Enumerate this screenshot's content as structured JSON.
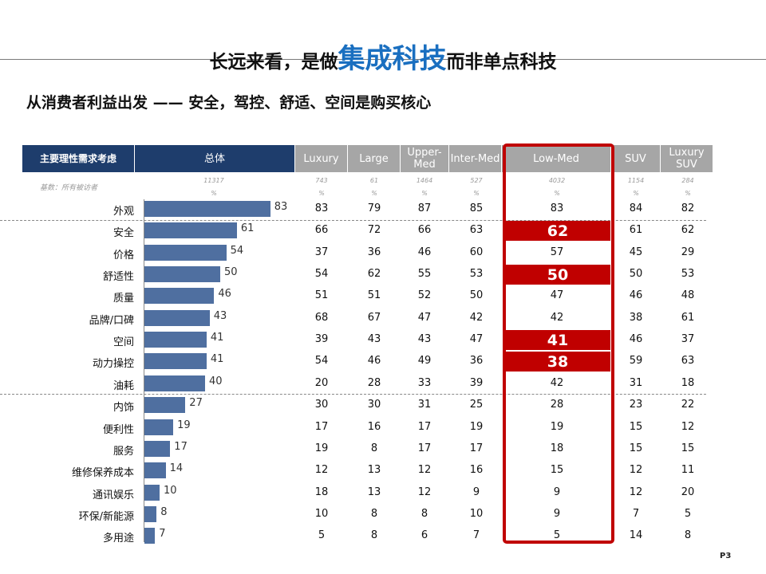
{
  "title_pre": "长远来看，是做",
  "title_hl": "集成科技",
  "title_post": "而非单点科技",
  "subtitle": "从消费者利益出发 —— 安全，驾控、舒适、空间是购买核心",
  "header": {
    "first": "主要理性需求考虑",
    "total": "总体",
    "cols": [
      "Luxury",
      "Large",
      "Upper-Med",
      "Inter-Med",
      "Low-Med",
      "SUV",
      "Luxury SUV"
    ]
  },
  "base_label": "基数：所有被访者",
  "base": {
    "total": "11317",
    "cols": [
      "743",
      "61",
      "1464",
      "527",
      "4032",
      "1154",
      "284"
    ],
    "unit": "%"
  },
  "colors": {
    "header_dark": "#1e3d6c",
    "header_grey": "#a6a6a6",
    "bar": "#4f6fa0",
    "highlight": "#c00000",
    "title_accent": "#1a6fc0"
  },
  "page_number": "P3",
  "chart_data": {
    "type": "bar",
    "orientation": "horizontal",
    "categories": [
      "外观",
      "安全",
      "价格",
      "舒适性",
      "质量",
      "品牌/口碑",
      "空间",
      "动力操控",
      "油耗",
      "内饰",
      "便利性",
      "服务",
      "维修保养成本",
      "通讯娱乐",
      "环保/新能源",
      "多用途"
    ],
    "series": [
      {
        "name": "总体",
        "values": [
          83,
          61,
          54,
          50,
          46,
          43,
          41,
          41,
          40,
          27,
          19,
          17,
          14,
          10,
          8,
          7
        ]
      }
    ],
    "table": {
      "columns": [
        "Luxury",
        "Large",
        "Upper-Med",
        "Inter-Med",
        "Low-Med",
        "SUV",
        "Luxury SUV"
      ],
      "rows": [
        [
          83,
          79,
          87,
          85,
          83,
          84,
          82
        ],
        [
          66,
          72,
          66,
          63,
          62,
          61,
          62
        ],
        [
          37,
          36,
          46,
          60,
          57,
          45,
          29
        ],
        [
          54,
          62,
          55,
          53,
          50,
          50,
          53
        ],
        [
          51,
          51,
          52,
          50,
          47,
          46,
          48
        ],
        [
          68,
          67,
          47,
          42,
          42,
          38,
          61
        ],
        [
          39,
          43,
          43,
          47,
          41,
          46,
          37
        ],
        [
          54,
          46,
          49,
          36,
          38,
          59,
          63
        ],
        [
          20,
          28,
          33,
          39,
          42,
          31,
          18
        ],
        [
          30,
          30,
          31,
          25,
          28,
          23,
          22
        ],
        [
          17,
          16,
          17,
          19,
          19,
          15,
          12
        ],
        [
          19,
          8,
          17,
          17,
          18,
          15,
          15
        ],
        [
          12,
          13,
          12,
          16,
          15,
          12,
          11
        ],
        [
          18,
          13,
          12,
          9,
          9,
          12,
          20
        ],
        [
          10,
          8,
          8,
          10,
          9,
          7,
          5
        ],
        [
          5,
          8,
          6,
          7,
          5,
          14,
          8
        ]
      ],
      "highlighted": {
        "column": "Low-Med",
        "rows": [
          "安全",
          "舒适性",
          "空间",
          "动力操控"
        ]
      }
    }
  }
}
